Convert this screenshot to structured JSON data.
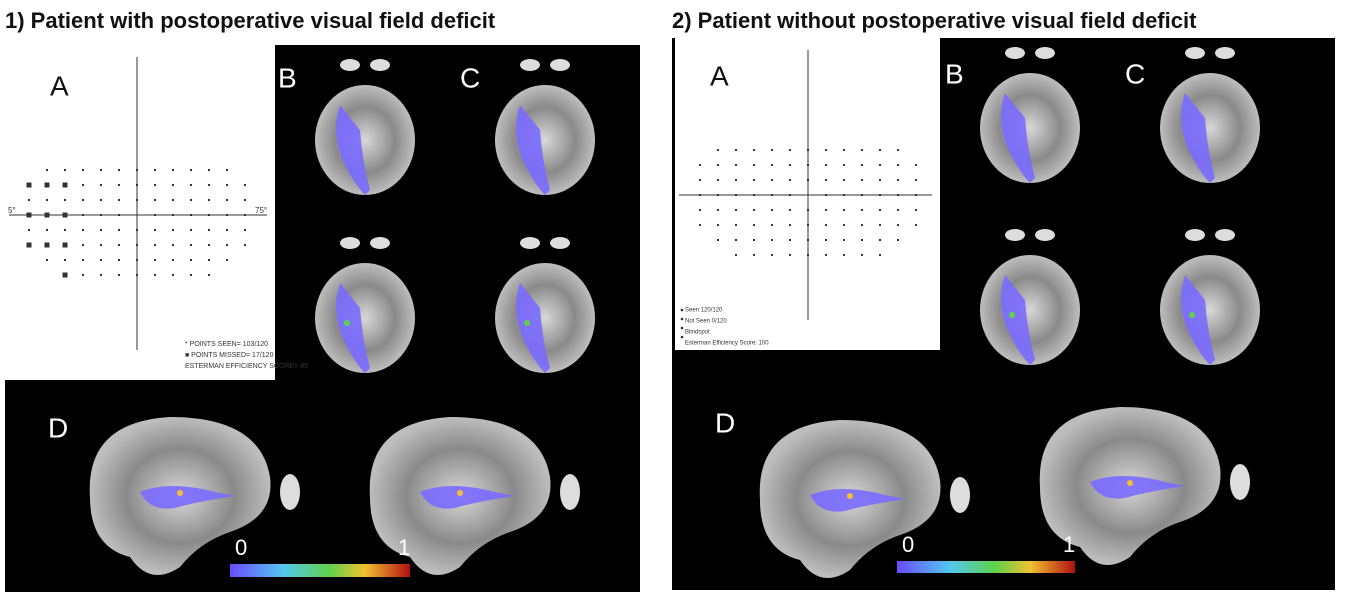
{
  "panels": [
    {
      "title": "1) Patient with postoperative visual field deficit",
      "labels": {
        "a": "A",
        "b": "B",
        "c": "C",
        "d": "D"
      },
      "field": {
        "left_axis": "5°",
        "right_axis": "75°",
        "legend": [
          "* POINTS SEEN= 103/120",
          "■ POINTS MISSED= 17/120",
          "ESTERMAN EFFICIENCY SCORE= 85"
        ]
      },
      "colorbar": {
        "min": 0,
        "max": 1
      }
    },
    {
      "title": "2) Patient without postoperative visual field deficit",
      "labels": {
        "a": "A",
        "b": "B",
        "c": "C",
        "d": "D"
      },
      "field": {
        "legend": [
          "Seen 120/120",
          "Not Seen 0/120",
          "Blindspot",
          "Esterman Efficiency Score: 100"
        ]
      },
      "colorbar": {
        "min": 0,
        "max": 1
      }
    }
  ]
}
